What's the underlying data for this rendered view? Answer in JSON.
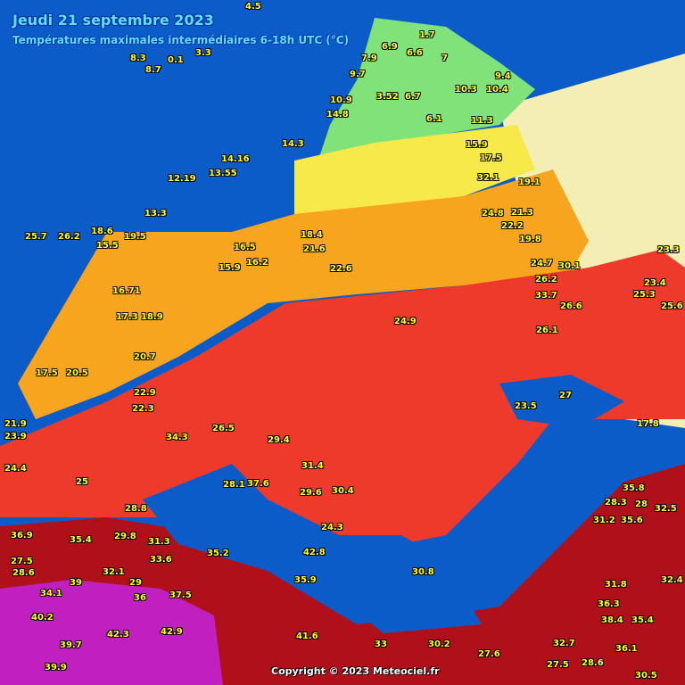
{
  "header": {
    "title": "Jeudi 21 septembre 2023",
    "subtitle": "Températures maximales intermédiaires 6-18h UTC (°C)"
  },
  "footer": {
    "copyright": "Copyright © 2023 Meteociel.fr"
  },
  "colors": {
    "sea": "#0b5cc9",
    "cold": "#7fe37a",
    "mild": "#f8e94a",
    "warm": "#f7a41e",
    "hot": "#ee3a2a",
    "very_hot": "#b0101a",
    "extreme": "#c020c0",
    "no_data": "#f4eeb4"
  },
  "temperatures": [
    "4.5",
    "8.3",
    "8.7",
    "0.1",
    "1.7",
    "3.3",
    "6.9",
    "7.9",
    "6.6",
    "7",
    "9.4",
    "9.7",
    "10.9",
    "3.52",
    "6.7",
    "10.3",
    "10.4",
    "14.8",
    "6.1",
    "11.3",
    "14.3",
    "12.19",
    "13.55",
    "14.16",
    "15.9",
    "16.5",
    "19.1",
    "13.3",
    "15.5",
    "16.2",
    "18.4",
    "22.6",
    "21.6",
    "22.2",
    "23.3",
    "23.4",
    "25.3",
    "25.6",
    "16.71",
    "17.3",
    "18.9",
    "20.7",
    "22.9",
    "26.6",
    "26.2",
    "24.7",
    "26.1",
    "17.5",
    "20.5",
    "22.3",
    "24.9",
    "23.5",
    "27",
    "17.8",
    "21.9",
    "23.9",
    "24.4",
    "26.5",
    "28.1",
    "28.8",
    "31.4",
    "29.6",
    "30.4",
    "25",
    "29.4",
    "28",
    "24.3",
    "36.9",
    "27.5",
    "28.6",
    "34.1",
    "35.4",
    "29.8",
    "31.3",
    "33.6",
    "35.2",
    "39",
    "32.1",
    "29",
    "36",
    "37.5",
    "40.2",
    "39.7",
    "39.9",
    "42.3",
    "42.9",
    "41.6",
    "42.8",
    "35.9",
    "37.6",
    "30.8",
    "33",
    "30.2",
    "27.6",
    "32.7",
    "27.5",
    "28.6",
    "30.5",
    "32.4",
    "31.8",
    "36.1",
    "35.4",
    "38.4",
    "36.3",
    "31.2",
    "35.6",
    "32.5",
    "28.3",
    "35.8",
    "34.3",
    "33.7",
    "30.1",
    "32.1",
    "24.8",
    "25.7",
    "26.2",
    "18.6",
    "19.5",
    "19.8",
    "21.3",
    "15.9",
    "17.5"
  ]
}
